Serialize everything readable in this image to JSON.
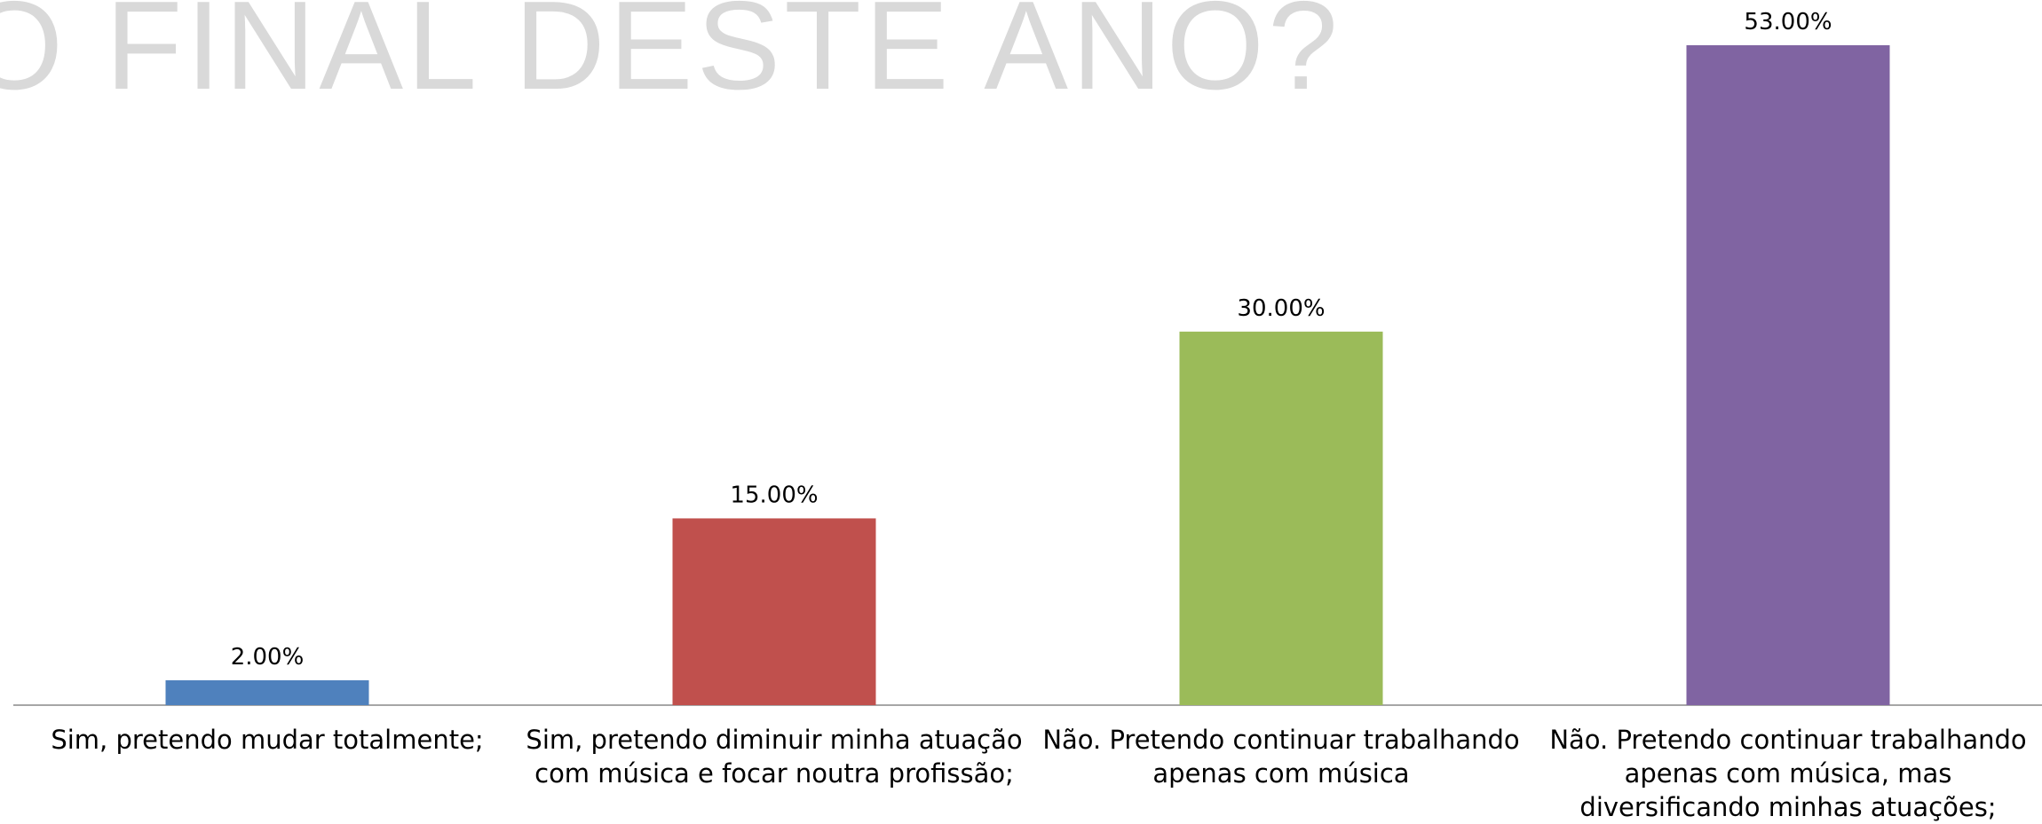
{
  "chart_data": {
    "type": "bar",
    "title": "ATE O FINAL DESTE ANO?",
    "categories": [
      "Sim, pretendo mudar totalmente;",
      "Sim, pretendo diminuir minha atuação com música e focar noutra profissão;",
      "Não. Pretendo continuar trabalhando apenas com música",
      "Não. Pretendo continuar trabalhando apenas com música, mas diversificando minhas atuações;"
    ],
    "values": [
      2,
      15,
      30,
      53
    ],
    "value_labels": [
      "2.00%",
      "15.00%",
      "30.00%",
      "53.00%"
    ],
    "colors": [
      "#4f81bd",
      "#c0504d",
      "#9bbb59",
      "#8064a2"
    ]
  }
}
